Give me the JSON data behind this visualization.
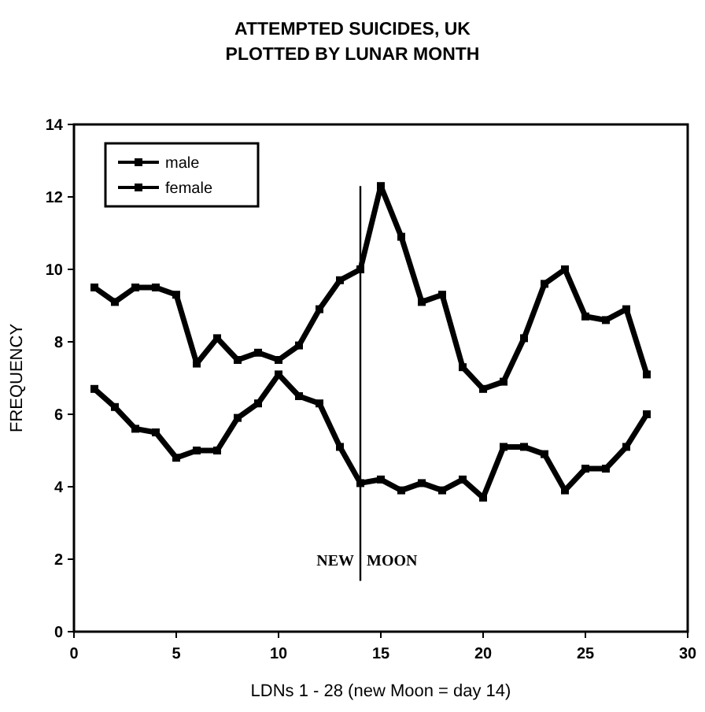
{
  "chart_data": {
    "type": "line",
    "title": "ATTEMPTED SUICIDES, UK",
    "subtitle": "PLOTTED BY LUNAR MONTH",
    "xlabel": "LDNs 1 - 28  (new Moon = day 14)",
    "ylabel": "FREQUENCY",
    "x": [
      1,
      2,
      3,
      4,
      5,
      6,
      7,
      8,
      9,
      10,
      11,
      12,
      13,
      14,
      15,
      16,
      17,
      18,
      19,
      20,
      21,
      22,
      23,
      24,
      25,
      26,
      27,
      28
    ],
    "series": [
      {
        "name": "male",
        "color": "#000000",
        "values": [
          6.7,
          6.2,
          5.6,
          5.5,
          4.8,
          5.0,
          5.0,
          5.9,
          6.3,
          7.1,
          6.5,
          6.3,
          5.1,
          4.1,
          4.2,
          3.9,
          4.1,
          3.9,
          4.2,
          3.7,
          5.1,
          5.1,
          4.9,
          3.9,
          4.5,
          4.5,
          5.1,
          6.0
        ]
      },
      {
        "name": "female",
        "color": "#000000",
        "values": [
          9.5,
          9.1,
          9.5,
          9.5,
          9.3,
          7.4,
          8.1,
          7.5,
          7.7,
          7.5,
          7.9,
          8.9,
          9.7,
          10.0,
          12.3,
          10.9,
          9.1,
          9.3,
          7.3,
          6.7,
          6.9,
          8.1,
          9.6,
          10.0,
          8.7,
          8.6,
          8.9,
          7.1
        ]
      }
    ],
    "xlim": [
      0,
      30
    ],
    "xticks": [
      0,
      5,
      10,
      15,
      20,
      25,
      30
    ],
    "ylim": [
      0,
      14
    ],
    "yticks": [
      0,
      2,
      4,
      6,
      8,
      10,
      12,
      14
    ],
    "ref_lines": [
      {
        "axis": "x",
        "value": 14,
        "label": "NEW MOON",
        "color": "#000000"
      }
    ],
    "grid": false,
    "legend": "top left",
    "marker": "square",
    "line_style": "solid"
  }
}
